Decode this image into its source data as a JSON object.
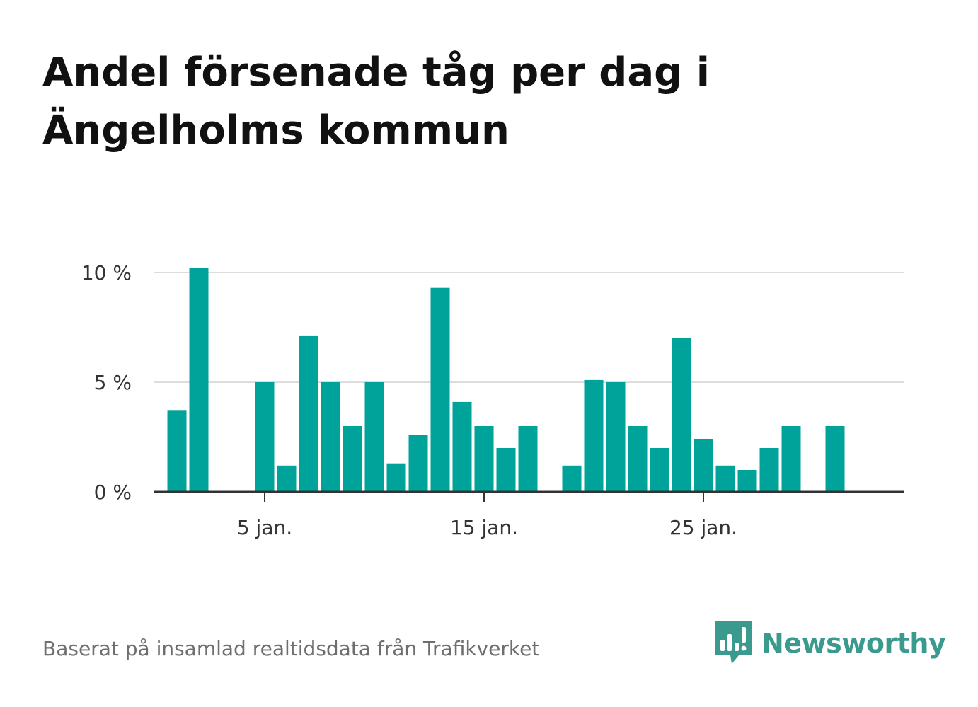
{
  "title": "Andel försenade tåg per dag i Ängelholms kommun",
  "source": "Baserat på insamlad realtidsdata från Trafikverket",
  "brand": {
    "name": "Newsworthy",
    "icon": "newsworthy-logo-icon",
    "color": "#3a9a8e"
  },
  "colors": {
    "bar": "#00a39a",
    "grid": "#dddddd",
    "baseline": "#333333"
  },
  "chart_data": {
    "type": "bar",
    "title": "Andel försenade tåg per dag i Ängelholms kommun",
    "xlabel": "",
    "ylabel": "",
    "ylim": [
      0,
      10.5
    ],
    "x_tick_labels": [
      {
        "day": 5,
        "label": "5 jan."
      },
      {
        "day": 15,
        "label": "15 jan."
      },
      {
        "day": 25,
        "label": "25 jan."
      }
    ],
    "y_tick_labels": [
      {
        "value": 0,
        "label": "0 %"
      },
      {
        "value": 5,
        "label": "5 %"
      },
      {
        "value": 10,
        "label": "10 %"
      }
    ],
    "grid": true,
    "legend": "none",
    "series": [
      {
        "values": [
          {
            "date": "2024-01-01",
            "day": 1,
            "value": 3.7
          },
          {
            "date": "2024-01-02",
            "day": 2,
            "value": 10.2
          },
          {
            "date": "2024-01-05",
            "day": 5,
            "value": 5.0
          },
          {
            "date": "2024-01-06",
            "day": 6,
            "value": 1.2
          },
          {
            "date": "2024-01-07",
            "day": 7,
            "value": 7.1
          },
          {
            "date": "2024-01-08",
            "day": 8,
            "value": 5.0
          },
          {
            "date": "2024-01-09",
            "day": 9,
            "value": 3.0
          },
          {
            "date": "2024-01-10",
            "day": 10,
            "value": 5.0
          },
          {
            "date": "2024-01-11",
            "day": 11,
            "value": 1.3
          },
          {
            "date": "2024-01-12",
            "day": 12,
            "value": 2.6
          },
          {
            "date": "2024-01-13",
            "day": 13,
            "value": 9.3
          },
          {
            "date": "2024-01-14",
            "day": 14,
            "value": 4.1
          },
          {
            "date": "2024-01-15",
            "day": 15,
            "value": 3.0
          },
          {
            "date": "2024-01-16",
            "day": 16,
            "value": 2.0
          },
          {
            "date": "2024-01-17",
            "day": 17,
            "value": 3.0
          },
          {
            "date": "2024-01-19",
            "day": 19,
            "value": 1.2
          },
          {
            "date": "2024-01-20",
            "day": 20,
            "value": 5.1
          },
          {
            "date": "2024-01-21",
            "day": 21,
            "value": 5.0
          },
          {
            "date": "2024-01-22",
            "day": 22,
            "value": 3.0
          },
          {
            "date": "2024-01-23",
            "day": 23,
            "value": 2.0
          },
          {
            "date": "2024-01-24",
            "day": 24,
            "value": 7.0
          },
          {
            "date": "2024-01-25",
            "day": 25,
            "value": 2.4
          },
          {
            "date": "2024-01-26",
            "day": 26,
            "value": 1.2
          },
          {
            "date": "2024-01-27",
            "day": 27,
            "value": 1.0
          },
          {
            "date": "2024-01-28",
            "day": 28,
            "value": 2.0
          },
          {
            "date": "2024-01-29",
            "day": 29,
            "value": 3.0
          },
          {
            "date": "2024-01-31",
            "day": 31,
            "value": 3.0
          }
        ]
      }
    ]
  }
}
